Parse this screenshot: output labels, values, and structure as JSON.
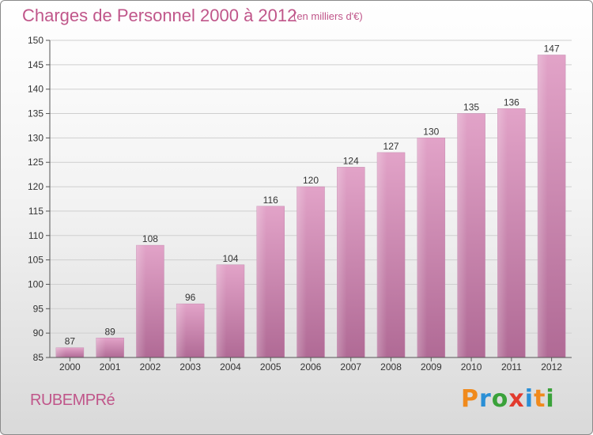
{
  "header": {
    "title": "Charges de Personnel 2000 à 2012",
    "unit": "(en milliers d'€)"
  },
  "footer": {
    "commune": "RUBEMPRé",
    "logo": "Proxiti"
  },
  "colors": {
    "bar_top": "#e2a3c8",
    "bar_bottom": "#b06a95",
    "title": "#c0568a"
  },
  "chart_data": {
    "type": "bar",
    "categories": [
      "2000",
      "2001",
      "2002",
      "2003",
      "2004",
      "2005",
      "2006",
      "2007",
      "2008",
      "2009",
      "2010",
      "2011",
      "2012"
    ],
    "values": [
      87,
      89,
      108,
      96,
      104,
      116,
      120,
      124,
      127,
      130,
      135,
      136,
      147
    ],
    "title": "Charges de Personnel 2000 à 2012",
    "ylim": [
      85,
      150
    ],
    "yticks": [
      85,
      90,
      95,
      100,
      105,
      110,
      115,
      120,
      125,
      130,
      135,
      140,
      145,
      150
    ],
    "grid": true
  }
}
